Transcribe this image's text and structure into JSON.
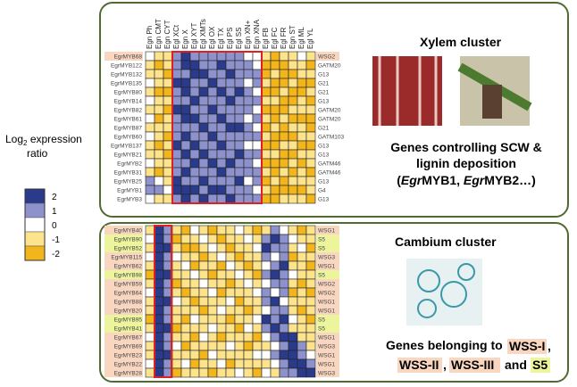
{
  "chart_data": {
    "type": "heatmap",
    "legend": {
      "title_main": "Log",
      "title_sub": "2",
      "title_rest": " expression",
      "title_line2": "ratio",
      "levels": [
        {
          "value": 2,
          "color": "#2b3b8c"
        },
        {
          "value": 1,
          "color": "#8d92cc"
        },
        {
          "value": 0,
          "color": "#ffffff"
        },
        {
          "value": -1,
          "color": "#fde48c"
        },
        {
          "value": -2,
          "color": "#f2b51c"
        }
      ]
    },
    "columns": [
      "Egn Ph",
      "Egn CMT",
      "Egn CYT",
      "Egl XCt",
      "Egn X",
      "Egl XYT",
      "Egl XMTs",
      "Egl OX",
      "Egl TX",
      "Egl PS",
      "Egl SS",
      "Egn XN+",
      "Egn XNA",
      "Egl FB",
      "Egl FC",
      "Egl FR",
      "Egn ST",
      "Egl ML",
      "Egl YL"
    ],
    "highlight_colors": {
      "WSG": "#f8d6c0",
      "S5": "#ecf59c"
    },
    "heatmaps": [
      {
        "rows": [
          {
            "gene": "EgrMYB68",
            "group": "WSG2"
          },
          {
            "gene": "EgrMYB122",
            "group": "GATM20"
          },
          {
            "gene": "EgrMYB132",
            "group": "G13"
          },
          {
            "gene": "EgrMYB135",
            "group": "G21"
          },
          {
            "gene": "EgrMYB80",
            "group": "G21"
          },
          {
            "gene": "EgrMYB14",
            "group": "G13"
          },
          {
            "gene": "EgrMYB82",
            "group": "GATM20"
          },
          {
            "gene": "EgrMYB61",
            "group": "GATM20"
          },
          {
            "gene": "EgrMYB87",
            "group": "G21"
          },
          {
            "gene": "EgrMYB60",
            "group": "GATM103"
          },
          {
            "gene": "EgrMYB137",
            "group": "G13"
          },
          {
            "gene": "EgrMYB21",
            "group": "G13"
          },
          {
            "gene": "EgrMYB2",
            "group": "GATM46"
          },
          {
            "gene": "EgrMYB31",
            "group": "GATM46"
          },
          {
            "gene": "EgrMYB25",
            "group": "G13"
          },
          {
            "gene": "EgrMYB1",
            "group": "G4"
          },
          {
            "gene": "EgrMYB3",
            "group": "G13"
          }
        ],
        "values": [
          [
            0,
            -1,
            -1,
            1,
            2,
            1,
            1,
            1,
            1,
            1,
            1,
            0,
            0,
            -1,
            -2,
            -1,
            -1,
            0,
            -1
          ],
          [
            -1,
            -2,
            -1,
            1,
            2,
            2,
            1,
            1,
            2,
            1,
            1,
            1,
            0,
            -2,
            -2,
            -2,
            -1,
            -1,
            -2
          ],
          [
            -1,
            -1,
            -2,
            1,
            1,
            2,
            2,
            1,
            1,
            2,
            1,
            1,
            1,
            -2,
            -1,
            -2,
            -2,
            -1,
            -1
          ],
          [
            0,
            -1,
            -1,
            2,
            2,
            1,
            1,
            2,
            1,
            1,
            1,
            0,
            1,
            -1,
            -2,
            -2,
            -1,
            -2,
            -2
          ],
          [
            -1,
            -2,
            -2,
            1,
            2,
            1,
            2,
            1,
            2,
            1,
            2,
            1,
            0,
            -2,
            -2,
            -1,
            -2,
            -2,
            -1
          ],
          [
            0,
            -1,
            -1,
            1,
            1,
            2,
            1,
            1,
            1,
            2,
            1,
            1,
            1,
            -1,
            -1,
            -2,
            -2,
            -1,
            -2
          ],
          [
            -1,
            -1,
            -2,
            2,
            2,
            1,
            1,
            2,
            1,
            1,
            1,
            1,
            0,
            -2,
            -2,
            -2,
            -1,
            -1,
            -1
          ],
          [
            0,
            -2,
            -1,
            1,
            2,
            2,
            1,
            1,
            2,
            1,
            1,
            0,
            1,
            -1,
            -2,
            -1,
            -2,
            -2,
            -2
          ],
          [
            -1,
            -1,
            -1,
            1,
            1,
            1,
            2,
            1,
            1,
            2,
            2,
            1,
            0,
            -2,
            -1,
            -2,
            -1,
            -1,
            -2
          ],
          [
            0,
            -1,
            -2,
            1,
            2,
            1,
            1,
            2,
            1,
            1,
            1,
            1,
            1,
            -1,
            -2,
            -2,
            -2,
            -1,
            -1
          ],
          [
            -1,
            -2,
            -1,
            2,
            1,
            2,
            1,
            1,
            2,
            1,
            1,
            0,
            0,
            -2,
            -2,
            -1,
            -1,
            -2,
            -2
          ],
          [
            -1,
            -1,
            -2,
            1,
            2,
            1,
            2,
            1,
            1,
            1,
            2,
            1,
            1,
            -1,
            -1,
            -2,
            -2,
            -1,
            -1
          ],
          [
            0,
            -1,
            -1,
            1,
            1,
            2,
            1,
            2,
            1,
            2,
            1,
            1,
            0,
            -2,
            -2,
            -2,
            -1,
            -2,
            -1
          ],
          [
            -1,
            -2,
            -1,
            1,
            2,
            1,
            1,
            1,
            2,
            1,
            1,
            1,
            1,
            -1,
            -2,
            -1,
            -2,
            -1,
            -2
          ],
          [
            1,
            0,
            -1,
            2,
            1,
            1,
            2,
            1,
            1,
            1,
            2,
            0,
            1,
            -2,
            -1,
            -2,
            -1,
            -1,
            -1
          ],
          [
            1,
            1,
            0,
            2,
            2,
            2,
            1,
            2,
            2,
            1,
            1,
            1,
            0,
            -1,
            -2,
            -2,
            -2,
            -2,
            -1
          ],
          [
            0,
            -1,
            -1,
            1,
            2,
            1,
            2,
            1,
            1,
            2,
            1,
            1,
            1,
            -2,
            -2,
            -1,
            -1,
            -1,
            -2
          ]
        ]
      },
      {
        "rows": [
          {
            "gene": "EgrMYB40",
            "group": "WSG1"
          },
          {
            "gene": "EgrMYB90",
            "group": "S5"
          },
          {
            "gene": "EgrMYB52",
            "group": "S5"
          },
          {
            "gene": "EgrMYB115",
            "group": "WSG3"
          },
          {
            "gene": "EgrMYB62",
            "group": "WSG1"
          },
          {
            "gene": "EgrMYB98",
            "group": "S5"
          },
          {
            "gene": "EgrMYB59",
            "group": "WSG2"
          },
          {
            "gene": "EgrMYB64",
            "group": "WSG2"
          },
          {
            "gene": "EgrMYB88",
            "group": "WSG1"
          },
          {
            "gene": "EgrMYB20",
            "group": "WSG1"
          },
          {
            "gene": "EgrMYB95",
            "group": "S5"
          },
          {
            "gene": "EgrMYB41",
            "group": "S5"
          },
          {
            "gene": "EgrMYB67",
            "group": "WSG1"
          },
          {
            "gene": "EgrMYB69",
            "group": "WSG3"
          },
          {
            "gene": "EgrMYB23",
            "group": "WSG1"
          },
          {
            "gene": "EgrMYB22",
            "group": "WSG1"
          },
          {
            "gene": "EgrMYB28",
            "group": "WSG3"
          }
        ],
        "values": [
          [
            -1,
            2,
            1,
            -1,
            -2,
            0,
            -1,
            -2,
            -1,
            -1,
            0,
            -1,
            -2,
            -1,
            1,
            0,
            -1,
            -2,
            -1
          ],
          [
            0,
            2,
            1,
            -2,
            -1,
            -1,
            0,
            -1,
            -2,
            -1,
            -1,
            0,
            -1,
            1,
            2,
            1,
            0,
            -1,
            -1
          ],
          [
            -1,
            2,
            2,
            -1,
            -2,
            -2,
            -1,
            0,
            -1,
            -2,
            -1,
            -1,
            0,
            2,
            1,
            1,
            -1,
            0,
            -2
          ],
          [
            0,
            2,
            1,
            0,
            -1,
            -1,
            -2,
            -1,
            0,
            -1,
            -2,
            -1,
            -1,
            1,
            0,
            1,
            -2,
            -1,
            -1
          ],
          [
            -1,
            2,
            1,
            -1,
            0,
            -2,
            -1,
            -1,
            -2,
            0,
            -1,
            -2,
            -1,
            0,
            1,
            2,
            -1,
            -1,
            -2
          ],
          [
            -2,
            2,
            2,
            -1,
            -1,
            0,
            -1,
            -2,
            -1,
            -1,
            0,
            -1,
            -2,
            1,
            2,
            1,
            0,
            -1,
            -1
          ],
          [
            -1,
            2,
            1,
            -2,
            -1,
            -1,
            0,
            -1,
            -1,
            -2,
            -1,
            0,
            -1,
            0,
            1,
            1,
            -1,
            -2,
            -1
          ],
          [
            0,
            2,
            1,
            -1,
            -2,
            -1,
            -1,
            0,
            -2,
            -1,
            -1,
            -1,
            0,
            1,
            0,
            1,
            -2,
            -1,
            -2
          ],
          [
            -1,
            2,
            2,
            0,
            -1,
            -2,
            -1,
            -1,
            -1,
            0,
            -2,
            -1,
            -1,
            1,
            2,
            0,
            -1,
            -1,
            -1
          ],
          [
            -1,
            2,
            1,
            -1,
            -1,
            -1,
            -2,
            -1,
            0,
            -1,
            -1,
            -2,
            -1,
            0,
            1,
            1,
            -1,
            -2,
            -1
          ],
          [
            -2,
            2,
            1,
            -1,
            -2,
            0,
            -1,
            -1,
            -1,
            -2,
            -1,
            -1,
            0,
            2,
            1,
            2,
            0,
            -1,
            -2
          ],
          [
            -1,
            2,
            2,
            -2,
            -1,
            -1,
            -1,
            0,
            -1,
            -1,
            -2,
            0,
            -1,
            1,
            2,
            1,
            -1,
            -1,
            -1
          ],
          [
            0,
            2,
            1,
            -1,
            -1,
            -2,
            0,
            -1,
            -2,
            -1,
            -1,
            -1,
            -2,
            0,
            1,
            2,
            2,
            -1,
            -1
          ],
          [
            -1,
            2,
            1,
            0,
            -2,
            -1,
            -1,
            -1,
            -1,
            0,
            -1,
            -2,
            -1,
            -1,
            0,
            1,
            2,
            1,
            -1
          ],
          [
            -1,
            2,
            2,
            -1,
            -1,
            -1,
            -2,
            0,
            -1,
            -1,
            -1,
            -1,
            0,
            0,
            1,
            2,
            2,
            1,
            0
          ],
          [
            0,
            2,
            1,
            -1,
            0,
            -2,
            -1,
            -1,
            0,
            -2,
            -1,
            -1,
            -1,
            -1,
            0,
            1,
            2,
            2,
            1
          ],
          [
            -1,
            2,
            1,
            -2,
            -1,
            -1,
            -1,
            -2,
            -1,
            -1,
            0,
            -1,
            -2,
            0,
            -1,
            1,
            1,
            2,
            2
          ]
        ]
      }
    ],
    "xylem": {
      "title_bold": "Xylem",
      "title_rest": " cluster",
      "line1": "Genes controlling SCW &",
      "line2": "lignin deposition",
      "line3": [
        "(",
        "Egr",
        "MYB1, ",
        "Egr",
        "MYB2…)"
      ]
    },
    "cambium": {
      "title": "Cambium cluster",
      "line1": "Genes belonging to",
      "tag1": "WSS-I",
      "sep1": ",",
      "tag2": "WSS-II",
      "sep2": ",",
      "tag3": "WSS-III",
      "and": "and",
      "tag4": "S5"
    }
  }
}
